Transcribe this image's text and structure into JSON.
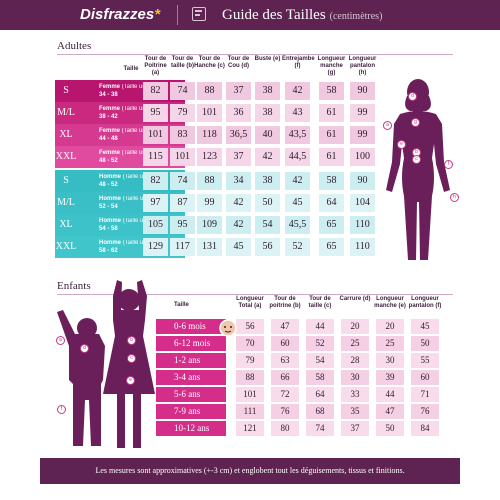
{
  "header": {
    "brand": "Disfrazzes",
    "title": "Guide des Tailles",
    "subtitle": "(centimètres)"
  },
  "adults": {
    "section_title": "Adultes",
    "size_header": "Taille",
    "columns": [
      "Tour de Poitrine (a)",
      "Tour de taille (b)",
      "Tour de Hanche (c)",
      "Tour de Cou (d)",
      "Buste (e)",
      "Entrejambe (f)",
      "Longueur manche (g)",
      "Longueur pantalon (h)"
    ],
    "rows": [
      {
        "code": "S",
        "gender": "Femme",
        "note": "(Taille unique)",
        "range": "34 - 38",
        "values": [
          "82",
          "74",
          "88",
          "37",
          "38",
          "42",
          "58",
          "90"
        ]
      },
      {
        "code": "M/L",
        "gender": "Femme",
        "note": "(Taille unique)",
        "range": "38 - 42",
        "values": [
          "95",
          "79",
          "101",
          "36",
          "38",
          "43",
          "61",
          "99"
        ]
      },
      {
        "code": "XL",
        "gender": "Femme",
        "note": "(Taille unique)",
        "range": "44 - 48",
        "values": [
          "101",
          "83",
          "118",
          "36,5",
          "40",
          "43,5",
          "61",
          "99"
        ]
      },
      {
        "code": "XXL",
        "gender": "Femme",
        "note": "(Taille unique)",
        "range": "48 - 52",
        "values": [
          "115",
          "101",
          "123",
          "37",
          "42",
          "44,5",
          "61",
          "100"
        ]
      },
      {
        "code": "S",
        "gender": "Homme",
        "note": "(Taille unique)",
        "range": "48 - 52",
        "values": [
          "82",
          "74",
          "88",
          "34",
          "38",
          "42",
          "58",
          "90"
        ]
      },
      {
        "code": "M/L",
        "gender": "Homme",
        "note": "(Taille unique)",
        "range": "52 - 54",
        "values": [
          "97",
          "87",
          "99",
          "42",
          "50",
          "45",
          "64",
          "104"
        ]
      },
      {
        "code": "XL",
        "gender": "Homme",
        "note": "(Taille unique)",
        "range": "54 - 58",
        "values": [
          "105",
          "95",
          "109",
          "42",
          "54",
          "45,5",
          "65",
          "110"
        ]
      },
      {
        "code": "XXL",
        "gender": "Homme",
        "note": "(Taille unique)",
        "range": "58 - 62",
        "values": [
          "129",
          "117",
          "131",
          "45",
          "56",
          "52",
          "65",
          "110"
        ]
      }
    ],
    "figure_markers": [
      "d",
      "a",
      "g",
      "e",
      "b",
      "c",
      "f",
      "h"
    ]
  },
  "kids": {
    "section_title": "Enfants",
    "size_header": "Taille",
    "columns": [
      "Longueur Total (a)",
      "Tour de poitrine (b)",
      "Tour de taille (c)",
      "Carrure (d)",
      "Longueur manche (e)",
      "Longueur pantalon (f)"
    ],
    "rows": [
      {
        "label": "0-6 mois",
        "values": [
          "56",
          "47",
          "44",
          "20",
          "20",
          "45"
        ]
      },
      {
        "label": "6-12 mois",
        "values": [
          "70",
          "60",
          "52",
          "25",
          "25",
          "50"
        ]
      },
      {
        "label": "1-2 ans",
        "values": [
          "79",
          "63",
          "54",
          "28",
          "30",
          "55"
        ]
      },
      {
        "label": "3-4 ans",
        "values": [
          "88",
          "66",
          "58",
          "30",
          "39",
          "60"
        ]
      },
      {
        "label": "5-6 ans",
        "values": [
          "101",
          "72",
          "64",
          "33",
          "44",
          "71"
        ]
      },
      {
        "label": "7-9 ans",
        "values": [
          "111",
          "76",
          "68",
          "35",
          "47",
          "76"
        ]
      },
      {
        "label": "10-12 ans",
        "values": [
          "121",
          "80",
          "74",
          "37",
          "50",
          "84"
        ]
      }
    ],
    "figure_markers": [
      "a",
      "d",
      "b",
      "c",
      "e",
      "f"
    ]
  },
  "footer": {
    "note": "Les mesures sont approximatives (+-3 cm) et englobent tout les déguisements, tissus et finitions."
  },
  "colors": {
    "header_bg": "#5e2351",
    "women_band": [
      "#b8166e",
      "#c92a7f",
      "#d63a90",
      "#e04ba0"
    ],
    "men_band": [
      "#36bcc3",
      "#39bfc5",
      "#3cc2c8",
      "#40c5cb"
    ],
    "silhouette": "#6b1f5a",
    "kids_band": "#d42d8a"
  }
}
